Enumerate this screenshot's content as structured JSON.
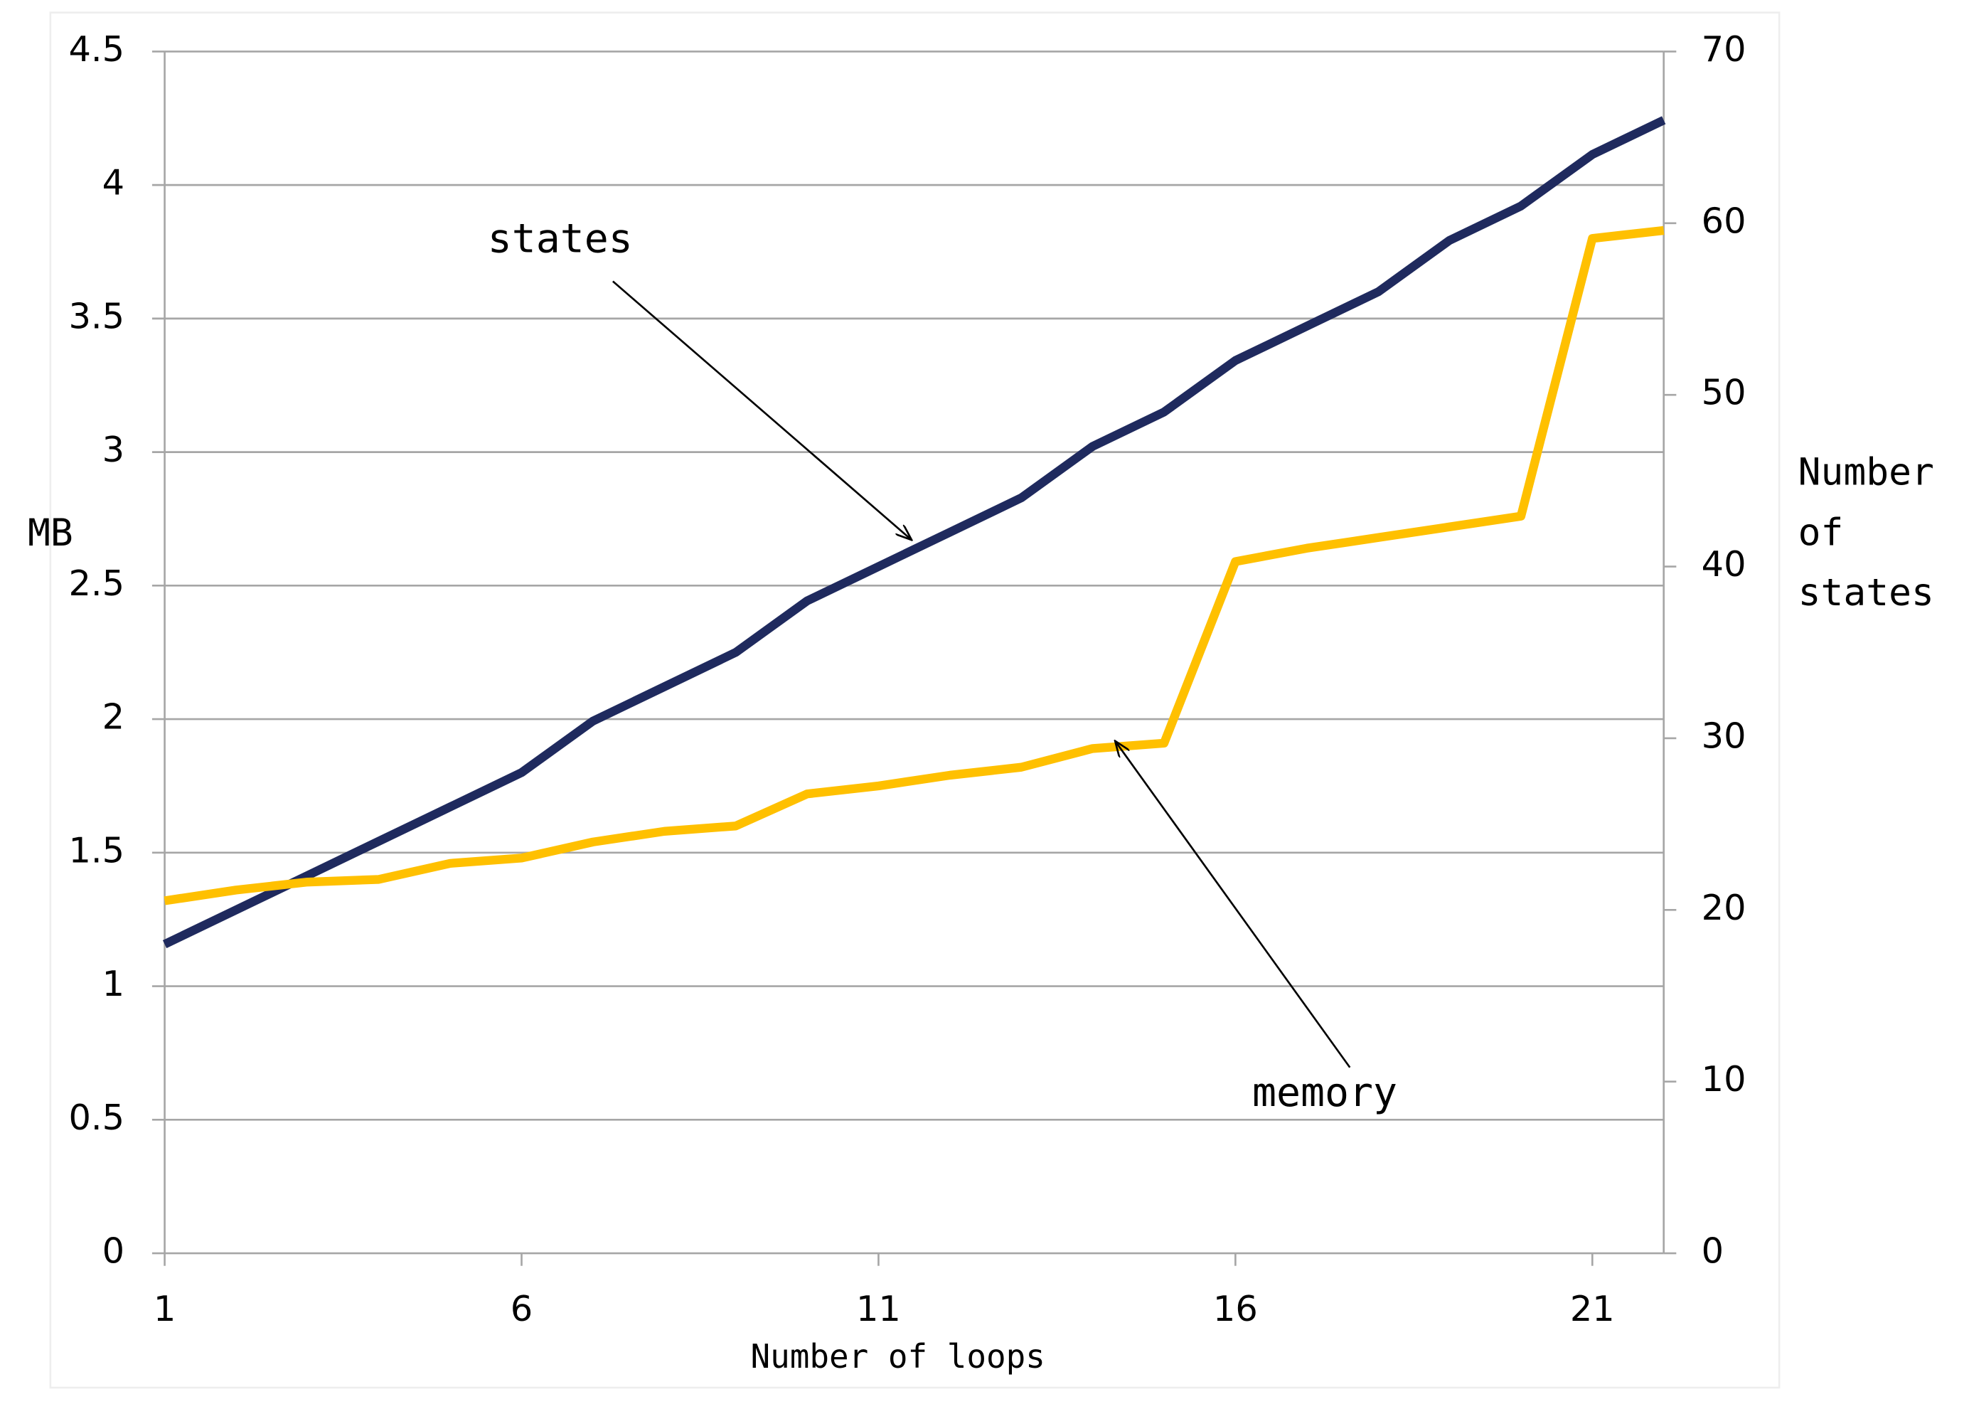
{
  "chart_data": {
    "type": "line",
    "x": [
      1,
      2,
      3,
      4,
      5,
      6,
      7,
      8,
      9,
      10,
      11,
      12,
      13,
      14,
      15,
      16,
      17,
      18,
      19,
      20,
      21,
      22
    ],
    "xlim": [
      1,
      22
    ],
    "xticks": [
      1,
      6,
      11,
      16,
      21
    ],
    "xlabel": "Number of loops",
    "ylabel": "MB",
    "y2label": [
      "Number",
      "of",
      "states"
    ],
    "ylim": [
      0,
      4.5
    ],
    "yticks": [
      0,
      0.5,
      1,
      1.5,
      2,
      2.5,
      3,
      3.5,
      4,
      4.5
    ],
    "y2lim": [
      0,
      70
    ],
    "y2ticks": [
      0,
      10,
      20,
      30,
      40,
      50,
      60,
      70
    ],
    "grid": true,
    "series": [
      {
        "name": "states",
        "color": "#1f2a5e",
        "axis": "y2",
        "values": [
          18,
          20,
          22,
          24,
          26,
          28,
          31,
          33,
          35,
          38,
          40,
          42,
          44,
          47,
          49,
          52,
          54,
          56,
          59,
          61,
          64,
          66
        ]
      },
      {
        "name": "memory",
        "color": "#ffc000",
        "values": [
          1.32,
          1.36,
          1.39,
          1.4,
          1.46,
          1.48,
          1.54,
          1.58,
          1.6,
          1.72,
          1.75,
          1.79,
          1.82,
          1.89,
          1.91,
          2.59,
          2.64,
          2.68,
          2.72,
          2.76,
          3.8,
          3.83
        ]
      }
    ]
  }
}
